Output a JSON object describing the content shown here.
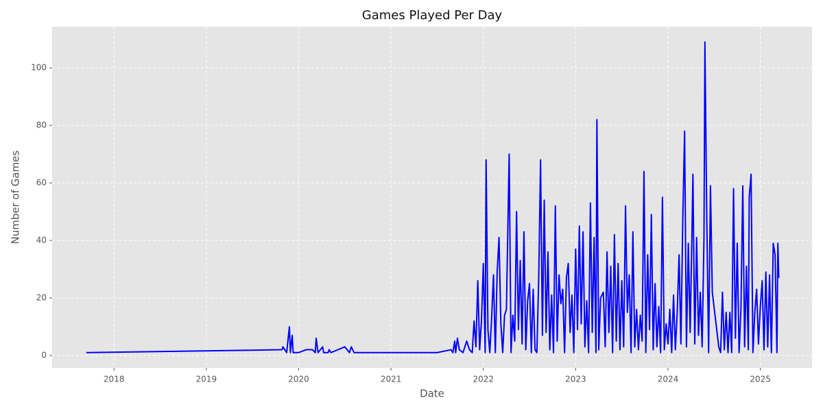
{
  "chart_data": {
    "type": "line",
    "title": "Games Played Per Day",
    "x_label": "Date",
    "y_label": "Number of Games",
    "color": "#0000ff",
    "grid": true,
    "xlim": [
      2017.33,
      2025.56
    ],
    "xticks": [
      2018,
      2019,
      2020,
      2021,
      2022,
      2023,
      2024,
      2025
    ],
    "ylim": [
      -4.3,
      114.3
    ],
    "yticks": [
      0,
      20,
      40,
      60,
      80,
      100
    ],
    "x": [
      2017.7,
      2019.82,
      2019.83,
      2019.87,
      2019.9,
      2019.91,
      2019.93,
      2019.94,
      2020.0,
      2020.08,
      2020.15,
      2020.18,
      2020.19,
      2020.21,
      2020.26,
      2020.27,
      2020.32,
      2020.33,
      2020.35,
      2020.5,
      2020.55,
      2020.57,
      2020.6,
      2021.5,
      2021.65,
      2021.67,
      2021.69,
      2021.7,
      2021.72,
      2021.74,
      2021.78,
      2021.8,
      2021.82,
      2021.85,
      2021.88,
      2021.9,
      2021.92,
      2021.94,
      2021.96,
      2021.98,
      2022.0,
      2022.02,
      2022.03,
      2022.05,
      2022.07,
      2022.09,
      2022.11,
      2022.13,
      2022.15,
      2022.17,
      2022.19,
      2022.21,
      2022.23,
      2022.25,
      2022.28,
      2022.3,
      2022.32,
      2022.34,
      2022.36,
      2022.38,
      2022.4,
      2022.42,
      2022.44,
      2022.46,
      2022.48,
      2022.5,
      2022.52,
      2022.54,
      2022.56,
      2022.58,
      2022.6,
      2022.62,
      2022.64,
      2022.66,
      2022.68,
      2022.7,
      2022.72,
      2022.74,
      2022.76,
      2022.78,
      2022.8,
      2022.82,
      2022.84,
      2022.86,
      2022.88,
      2022.9,
      2022.92,
      2022.94,
      2022.96,
      2022.98,
      2023.0,
      2023.02,
      2023.04,
      2023.06,
      2023.08,
      2023.1,
      2023.12,
      2023.14,
      2023.16,
      2023.18,
      2023.2,
      2023.22,
      2023.23,
      2023.25,
      2023.27,
      2023.3,
      2023.32,
      2023.34,
      2023.36,
      2023.38,
      2023.4,
      2023.42,
      2023.44,
      2023.46,
      2023.48,
      2023.5,
      2023.52,
      2023.54,
      2023.56,
      2023.58,
      2023.6,
      2023.62,
      2023.64,
      2023.66,
      2023.68,
      2023.7,
      2023.72,
      2023.74,
      2023.76,
      2023.78,
      2023.8,
      2023.82,
      2023.84,
      2023.86,
      2023.88,
      2023.9,
      2023.92,
      2023.94,
      2023.96,
      2023.98,
      2024.0,
      2024.02,
      2024.04,
      2024.06,
      2024.08,
      2024.1,
      2024.12,
      2024.14,
      2024.16,
      2024.18,
      2024.2,
      2024.22,
      2024.24,
      2024.26,
      2024.27,
      2024.29,
      2024.31,
      2024.33,
      2024.35,
      2024.37,
      2024.39,
      2024.4,
      2024.42,
      2024.44,
      2024.46,
      2024.48,
      2024.55,
      2024.57,
      2024.59,
      2024.61,
      2024.63,
      2024.65,
      2024.67,
      2024.69,
      2024.71,
      2024.73,
      2024.75,
      2024.77,
      2024.79,
      2024.81,
      2024.83,
      2024.85,
      2024.87,
      2024.88,
      2024.9,
      2024.92,
      2024.94,
      2024.96,
      2024.98,
      2025.0,
      2025.02,
      2025.04,
      2025.06,
      2025.08,
      2025.1,
      2025.12,
      2025.14,
      2025.16,
      2025.18,
      2025.19,
      2025.2
    ],
    "values": [
      1,
      2,
      3,
      1,
      10,
      1,
      7,
      1,
      1,
      2,
      2,
      1,
      6,
      1,
      3,
      1,
      1,
      2,
      1,
      3,
      1,
      3,
      1,
      1,
      2,
      1,
      5,
      1,
      6,
      2,
      1,
      3,
      5,
      2,
      1,
      12,
      3,
      26,
      2,
      12,
      32,
      1,
      68,
      9,
      1,
      13,
      28,
      1,
      29,
      41,
      11,
      1,
      14,
      16,
      70,
      1,
      14,
      5,
      50,
      9,
      33,
      4,
      43,
      2,
      19,
      25,
      1,
      23,
      2,
      1,
      27,
      68,
      7,
      54,
      8,
      36,
      2,
      21,
      1,
      52,
      5,
      28,
      18,
      23,
      1,
      27,
      32,
      8,
      21,
      1,
      37,
      9,
      45,
      11,
      43,
      3,
      19,
      1,
      53,
      8,
      41,
      1,
      82,
      2,
      20,
      22,
      3,
      36,
      8,
      31,
      1,
      42,
      5,
      32,
      2,
      26,
      3,
      52,
      15,
      28,
      1,
      43,
      3,
      16,
      2,
      14,
      5,
      64,
      1,
      35,
      9,
      49,
      2,
      25,
      3,
      17,
      1,
      55,
      2,
      11,
      4,
      16,
      1,
      21,
      2,
      15,
      35,
      4,
      47,
      78,
      3,
      39,
      8,
      43,
      63,
      4,
      41,
      7,
      22,
      3,
      41,
      109,
      48,
      1,
      59,
      22,
      3,
      1,
      22,
      2,
      15,
      1,
      15,
      1,
      58,
      6,
      39,
      1,
      16,
      59,
      3,
      31,
      2,
      55,
      63,
      1,
      15,
      23,
      4,
      17,
      26,
      2,
      29,
      3,
      28,
      1,
      39,
      35,
      1,
      39,
      27
    ]
  }
}
